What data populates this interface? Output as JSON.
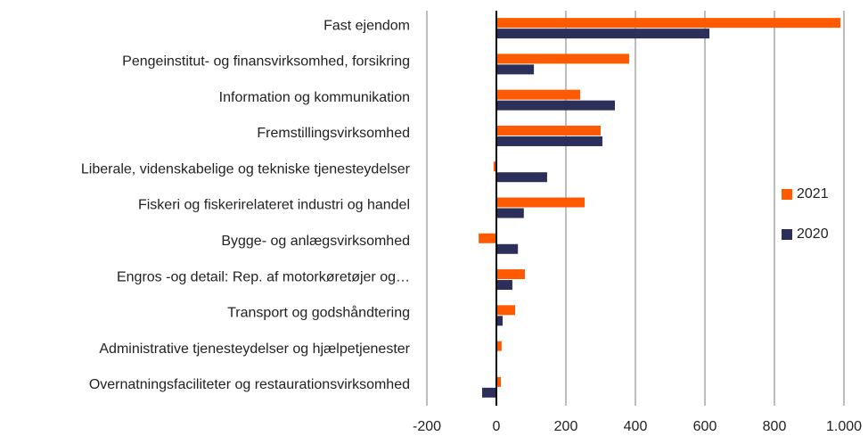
{
  "chart_data": {
    "type": "barh",
    "categories": [
      "Fast ejendom",
      "Pengeinstitut- og finansvirksomhed, forsikring",
      "Information og kommunikation",
      "Fremstillingsvirksomhed",
      "Liberale, videnskabelige og tekniske tjenesteydelser",
      "Fiskeri og fiskerirelateret industri og handel",
      "Bygge- og anlægsvirksomhed",
      "Engros -og detail: Rep. af motorkøretøjer og…",
      "Transport og godshåndtering",
      "Administrative tjenesteydelser og hjælpetjenester",
      "Overnatningsfaciliteter og restaurationsvirksomhed"
    ],
    "series": [
      {
        "name": "2021",
        "color": "#ff5a00",
        "values": [
          990,
          382,
          241,
          300,
          -8,
          254,
          -51,
          82,
          54,
          15,
          13
        ]
      },
      {
        "name": "2020",
        "color": "#2b2f5a",
        "values": [
          613,
          108,
          341,
          305,
          146,
          79,
          62,
          46,
          18,
          0,
          -41
        ]
      }
    ],
    "xlim": [
      -200,
      1000
    ],
    "xticks": [
      -200,
      0,
      200,
      400,
      600,
      800,
      {
        "value": 1000,
        "label": "1.000"
      }
    ],
    "grid": true,
    "legend": "right"
  }
}
